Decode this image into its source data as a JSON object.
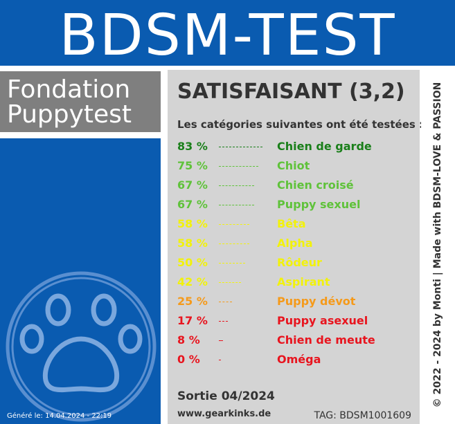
{
  "header": {
    "title": "BDSM-TEST"
  },
  "organization": {
    "line1": "Fondation",
    "line2": "Puppytest"
  },
  "result": {
    "title": "SATISFAISANT (3,2)",
    "subtitle": "Les catégories suivantes ont été testées :"
  },
  "categories": [
    {
      "percent_label": "83 %",
      "percent": 83,
      "name": "Chien de garde",
      "color": "#1a7f1a"
    },
    {
      "percent_label": "75 %",
      "percent": 75,
      "name": "Chiot",
      "color": "#5fc23a"
    },
    {
      "percent_label": "67 %",
      "percent": 67,
      "name": "Chien croisé",
      "color": "#5fc23a"
    },
    {
      "percent_label": "67 %",
      "percent": 67,
      "name": "Puppy sexuel",
      "color": "#5fc23a"
    },
    {
      "percent_label": "58 %",
      "percent": 58,
      "name": "Bêta",
      "color": "#f2f20a"
    },
    {
      "percent_label": "58 %",
      "percent": 58,
      "name": "Alpha",
      "color": "#f2f20a"
    },
    {
      "percent_label": "50 %",
      "percent": 50,
      "name": "Rôdeur",
      "color": "#f2f20a"
    },
    {
      "percent_label": "42 %",
      "percent": 42,
      "name": "Aspirant",
      "color": "#f2f20a"
    },
    {
      "percent_label": "25 %",
      "percent": 25,
      "name": "Puppy dévot",
      "color": "#f59a1a"
    },
    {
      "percent_label": "17 %",
      "percent": 17,
      "name": "Puppy asexuel",
      "color": "#e8141e"
    },
    {
      "percent_label": "8 %",
      "percent": 8,
      "name": "Chien de meute",
      "color": "#e8141e"
    },
    {
      "percent_label": "0 %",
      "percent": 0,
      "name": "Oméga",
      "color": "#e8141e"
    }
  ],
  "footer": {
    "release": "Sortie 04/2024",
    "website": "www.gearkinks.de",
    "tag": "TAG: BDSM1001609",
    "generated": "Généré le: 14.04.2024 - 22:19",
    "copyright": "© 2022 - 2024 by Monti | Made with BDSM-LOVE & PASSION"
  },
  "icons": {
    "paw": "paw-icon"
  },
  "colors": {
    "brand_blue": "#0a5bb0",
    "gray_box": "#7f7f7f",
    "panel_gray": "#d4d4d4"
  }
}
